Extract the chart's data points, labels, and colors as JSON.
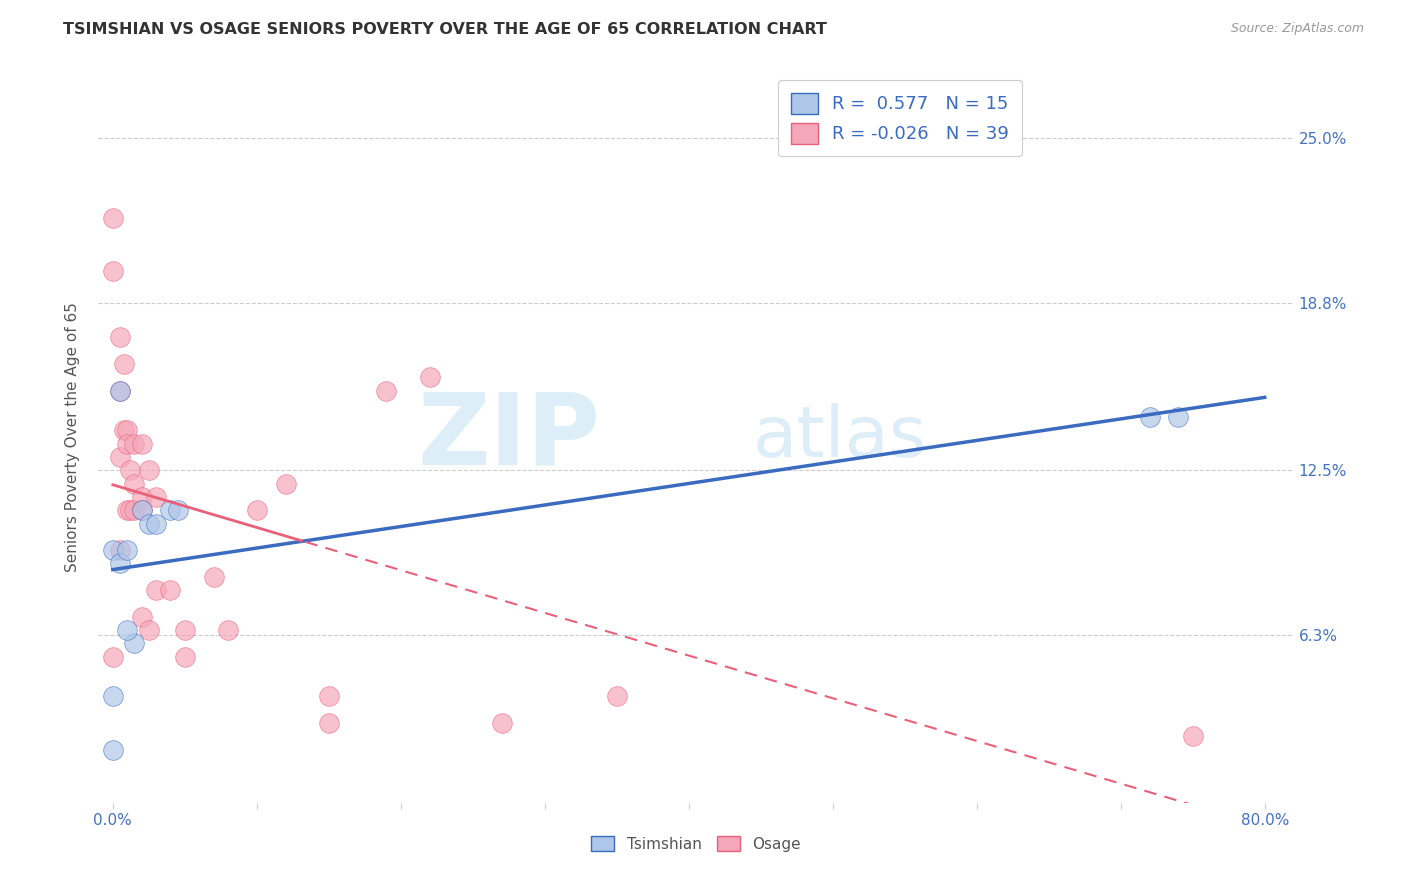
{
  "title": "TSIMSHIAN VS OSAGE SENIORS POVERTY OVER THE AGE OF 65 CORRELATION CHART",
  "source": "Source: ZipAtlas.com",
  "ylabel": "Seniors Poverty Over the Age of 65",
  "ytick_labels": [
    "25.0%",
    "18.8%",
    "12.5%",
    "6.3%"
  ],
  "ytick_values": [
    0.25,
    0.188,
    0.125,
    0.063
  ],
  "xlim": [
    0.0,
    0.8
  ],
  "ylim": [
    0.0,
    0.275
  ],
  "legend_labels": [
    "Tsimshian",
    "Osage"
  ],
  "tsimshian_color": "#aec6e8",
  "osage_color": "#f4a7b9",
  "tsimshian_line_color": "#3a6bbf",
  "osage_line_color": "#e8607a",
  "R_tsimshian": "0.577",
  "N_tsimshian": 15,
  "R_osage": "-0.026",
  "N_osage": 39,
  "tsimshian_x": [
    0.0,
    0.0,
    0.005,
    0.005,
    0.01,
    0.015,
    0.02,
    0.025,
    0.03,
    0.04,
    0.045,
    0.72,
    0.74,
    0.0,
    0.01
  ],
  "tsimshian_y": [
    0.095,
    0.04,
    0.155,
    0.09,
    0.095,
    0.06,
    0.11,
    0.105,
    0.105,
    0.11,
    0.11,
    0.145,
    0.145,
    0.02,
    0.065
  ],
  "osage_x": [
    0.0,
    0.0,
    0.005,
    0.005,
    0.005,
    0.008,
    0.008,
    0.01,
    0.01,
    0.01,
    0.012,
    0.012,
    0.015,
    0.015,
    0.015,
    0.02,
    0.02,
    0.02,
    0.025,
    0.025,
    0.03,
    0.03,
    0.04,
    0.05,
    0.05,
    0.07,
    0.08,
    0.1,
    0.12,
    0.15,
    0.15,
    0.19,
    0.22,
    0.27,
    0.35,
    0.75,
    0.0,
    0.005,
    0.02
  ],
  "osage_y": [
    0.2,
    0.22,
    0.175,
    0.155,
    0.13,
    0.165,
    0.14,
    0.14,
    0.135,
    0.11,
    0.125,
    0.11,
    0.135,
    0.12,
    0.11,
    0.135,
    0.115,
    0.07,
    0.125,
    0.065,
    0.115,
    0.08,
    0.08,
    0.065,
    0.055,
    0.085,
    0.065,
    0.11,
    0.12,
    0.04,
    0.03,
    0.155,
    0.16,
    0.03,
    0.04,
    0.025,
    0.055,
    0.095,
    0.11
  ],
  "watermark_zip": "ZIP",
  "watermark_atlas": "atlas",
  "background_color": "#ffffff",
  "grid_color": "#cccccc"
}
